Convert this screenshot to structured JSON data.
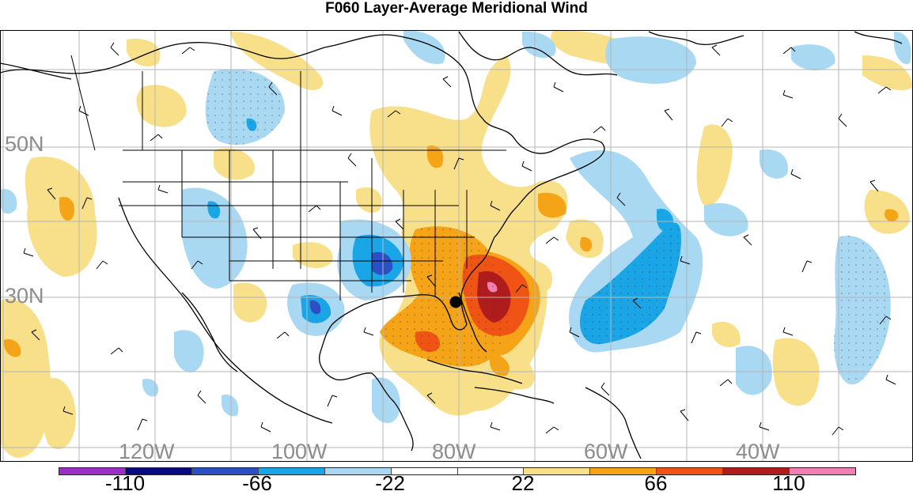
{
  "title": "F060 Layer-Average Meridional Wind",
  "longitude_labels": [
    "120W",
    "100W",
    "80W",
    "60W",
    "40W"
  ],
  "latitude_labels": [
    "50N",
    "30N"
  ],
  "colorbar": {
    "labels": [
      "-110",
      "-66",
      "-22",
      "22",
      "66",
      "110"
    ],
    "colors": [
      "#9b30c8",
      "#0a0a80",
      "#2c4fc4",
      "#1aa6e6",
      "#a8d8f2",
      "#ffffff",
      "#ffffff",
      "#f8e08a",
      "#f5a418",
      "#ef5414",
      "#b01c1c",
      "#f080b4"
    ]
  },
  "map_colors": {
    "ocean_background": "#ffffff",
    "light_blue": "#a8d8f2",
    "medium_blue": "#1aa6e6",
    "dark_blue": "#2c4fc4",
    "light_yellow": "#f8e08a",
    "orange": "#f5a418",
    "red_orange": "#ef5414",
    "dark_red": "#b01c1c",
    "pink": "#f080b4"
  }
}
